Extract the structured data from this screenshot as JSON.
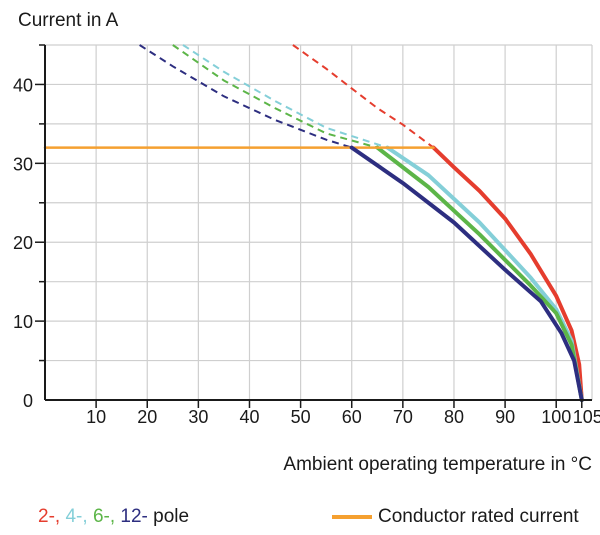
{
  "colors": {
    "pole_2": "#e53d2e",
    "pole_4": "#84cfd8",
    "pole_6": "#5cb548",
    "pole_12": "#2d2e80",
    "rated": "#f5a030",
    "grid": "#cfcfcf",
    "axis": "#1a1a1a"
  },
  "chart_data": {
    "type": "line",
    "ylabel": "Current in A",
    "xlabel": "Ambient operating temperature in °C",
    "xlim": [
      0,
      107
    ],
    "ylim": [
      0,
      45
    ],
    "x_ticks": [
      10,
      20,
      30,
      40,
      50,
      60,
      70,
      80,
      90,
      100,
      105
    ],
    "y_ticks": [
      0,
      10,
      20,
      30,
      40
    ],
    "grid": true,
    "series": [
      {
        "key": "pole_2",
        "style": "derating",
        "dashed": [
          [
            48.5,
            45
          ],
          [
            55,
            42
          ],
          [
            60,
            39.5
          ],
          [
            65,
            37
          ],
          [
            70,
            34.9
          ],
          [
            76,
            32
          ]
        ],
        "solid": [
          [
            76,
            32
          ],
          [
            80,
            29.5
          ],
          [
            85,
            26.5
          ],
          [
            90,
            23
          ],
          [
            95,
            18.5
          ],
          [
            100,
            13.2
          ],
          [
            103,
            8.8
          ],
          [
            104.5,
            4.5
          ],
          [
            105,
            0
          ]
        ]
      },
      {
        "key": "pole_4",
        "style": "derating",
        "dashed": [
          [
            27,
            45
          ],
          [
            35,
            41.6
          ],
          [
            45,
            37.9
          ],
          [
            55,
            34.5
          ],
          [
            67,
            32
          ]
        ],
        "solid": [
          [
            67,
            32
          ],
          [
            75,
            28.5
          ],
          [
            85,
            22.5
          ],
          [
            95,
            15.5
          ],
          [
            100,
            11.5
          ],
          [
            103,
            7.5
          ],
          [
            105,
            0
          ]
        ]
      },
      {
        "key": "pole_6",
        "style": "derating",
        "dashed": [
          [
            25,
            45
          ],
          [
            35,
            40.5
          ],
          [
            45,
            37
          ],
          [
            55,
            33.8
          ],
          [
            65,
            32
          ]
        ],
        "solid": [
          [
            65,
            32
          ],
          [
            75,
            27
          ],
          [
            85,
            21
          ],
          [
            95,
            14.5
          ],
          [
            100,
            11
          ],
          [
            103,
            7
          ],
          [
            105,
            0
          ]
        ]
      },
      {
        "key": "pole_12",
        "style": "derating",
        "dashed": [
          [
            18.5,
            45
          ],
          [
            25,
            42.3
          ],
          [
            35,
            38.5
          ],
          [
            45,
            35.5
          ],
          [
            55,
            33
          ],
          [
            60,
            32
          ]
        ],
        "solid": [
          [
            60,
            32
          ],
          [
            70,
            27.5
          ],
          [
            80,
            22.5
          ],
          [
            90,
            16.5
          ],
          [
            97,
            12.5
          ],
          [
            101,
            8.5
          ],
          [
            103.5,
            5
          ],
          [
            105,
            0
          ]
        ]
      },
      {
        "key": "rated",
        "style": "constant",
        "solid": [
          [
            0,
            32
          ],
          [
            76,
            32
          ]
        ]
      }
    ]
  },
  "legend": {
    "poles": [
      {
        "text": "2-,",
        "key": "pole_2"
      },
      {
        "text": "4-,",
        "key": "pole_4"
      },
      {
        "text": "6-,",
        "key": "pole_6"
      },
      {
        "text": "12-",
        "key": "pole_12"
      }
    ],
    "pole_suffix": "pole",
    "rated_label": "Conductor rated current"
  }
}
